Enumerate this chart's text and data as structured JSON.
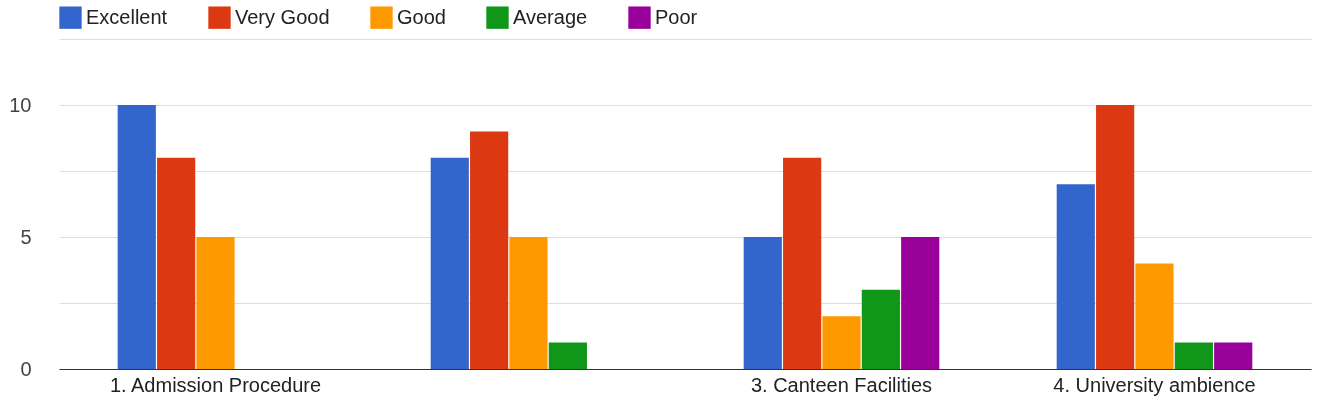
{
  "chart_data": {
    "type": "bar",
    "categories": [
      "1. Admission Procedure",
      null,
      "3. Canteen Facilities",
      "4. University ambience"
    ],
    "series": [
      {
        "name": "Excellent",
        "color": "#3366cc",
        "values": [
          10,
          8,
          5,
          7
        ]
      },
      {
        "name": "Very Good",
        "color": "#dc3912",
        "values": [
          8,
          9,
          8,
          10
        ]
      },
      {
        "name": "Good",
        "color": "#ff9900",
        "values": [
          5,
          5,
          2,
          4
        ]
      },
      {
        "name": "Average",
        "color": "#109618",
        "values": [
          0,
          1,
          3,
          1
        ]
      },
      {
        "name": "Poor",
        "color": "#990099",
        "values": [
          0,
          0,
          5,
          1
        ]
      }
    ],
    "ylim": [
      0,
      12.5
    ],
    "yticks": [
      0,
      {
        "value": 2.5,
        "label": null
      },
      5,
      {
        "value": 7.5,
        "label": null
      },
      10,
      {
        "value": 12.5,
        "label": null
      }
    ],
    "grid": "y",
    "legend": "top left"
  }
}
